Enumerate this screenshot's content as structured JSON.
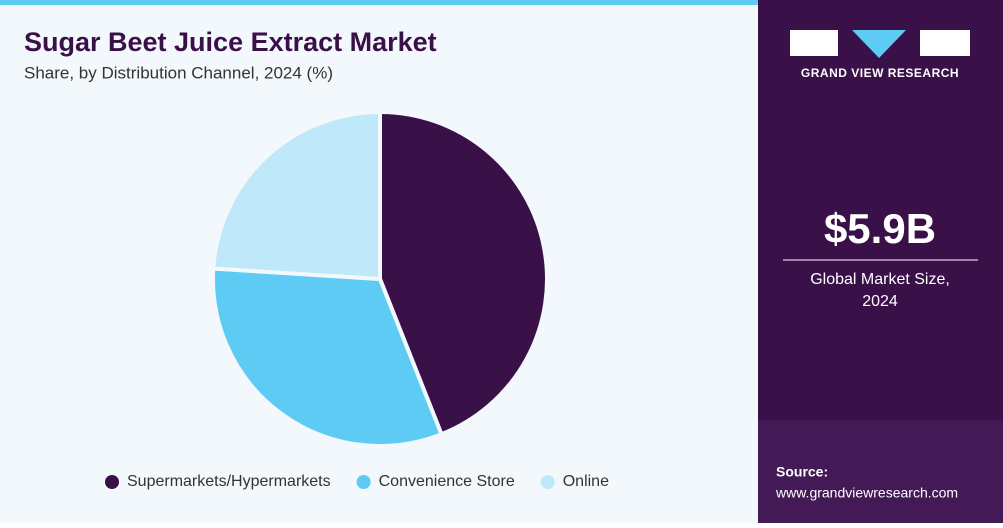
{
  "chart_data": {
    "type": "pie",
    "title": "Sugar Beet Juice Extract Market",
    "subtitle": "Share, by Distribution Channel, 2024 (%)",
    "categories": [
      "Supermarkets/Hypermarkets",
      "Convenience Store",
      "Online"
    ],
    "values": [
      44,
      32,
      24
    ],
    "colors": [
      "#3a1048",
      "#5ecbf5",
      "#bfe9fa"
    ]
  },
  "sidebar": {
    "brand": "GRAND VIEW RESEARCH",
    "market_size": "$5.9B",
    "market_size_label": [
      "Global Market Size,",
      "2024"
    ],
    "source_label": "Source:",
    "source_url": "www.grandviewresearch.com"
  }
}
